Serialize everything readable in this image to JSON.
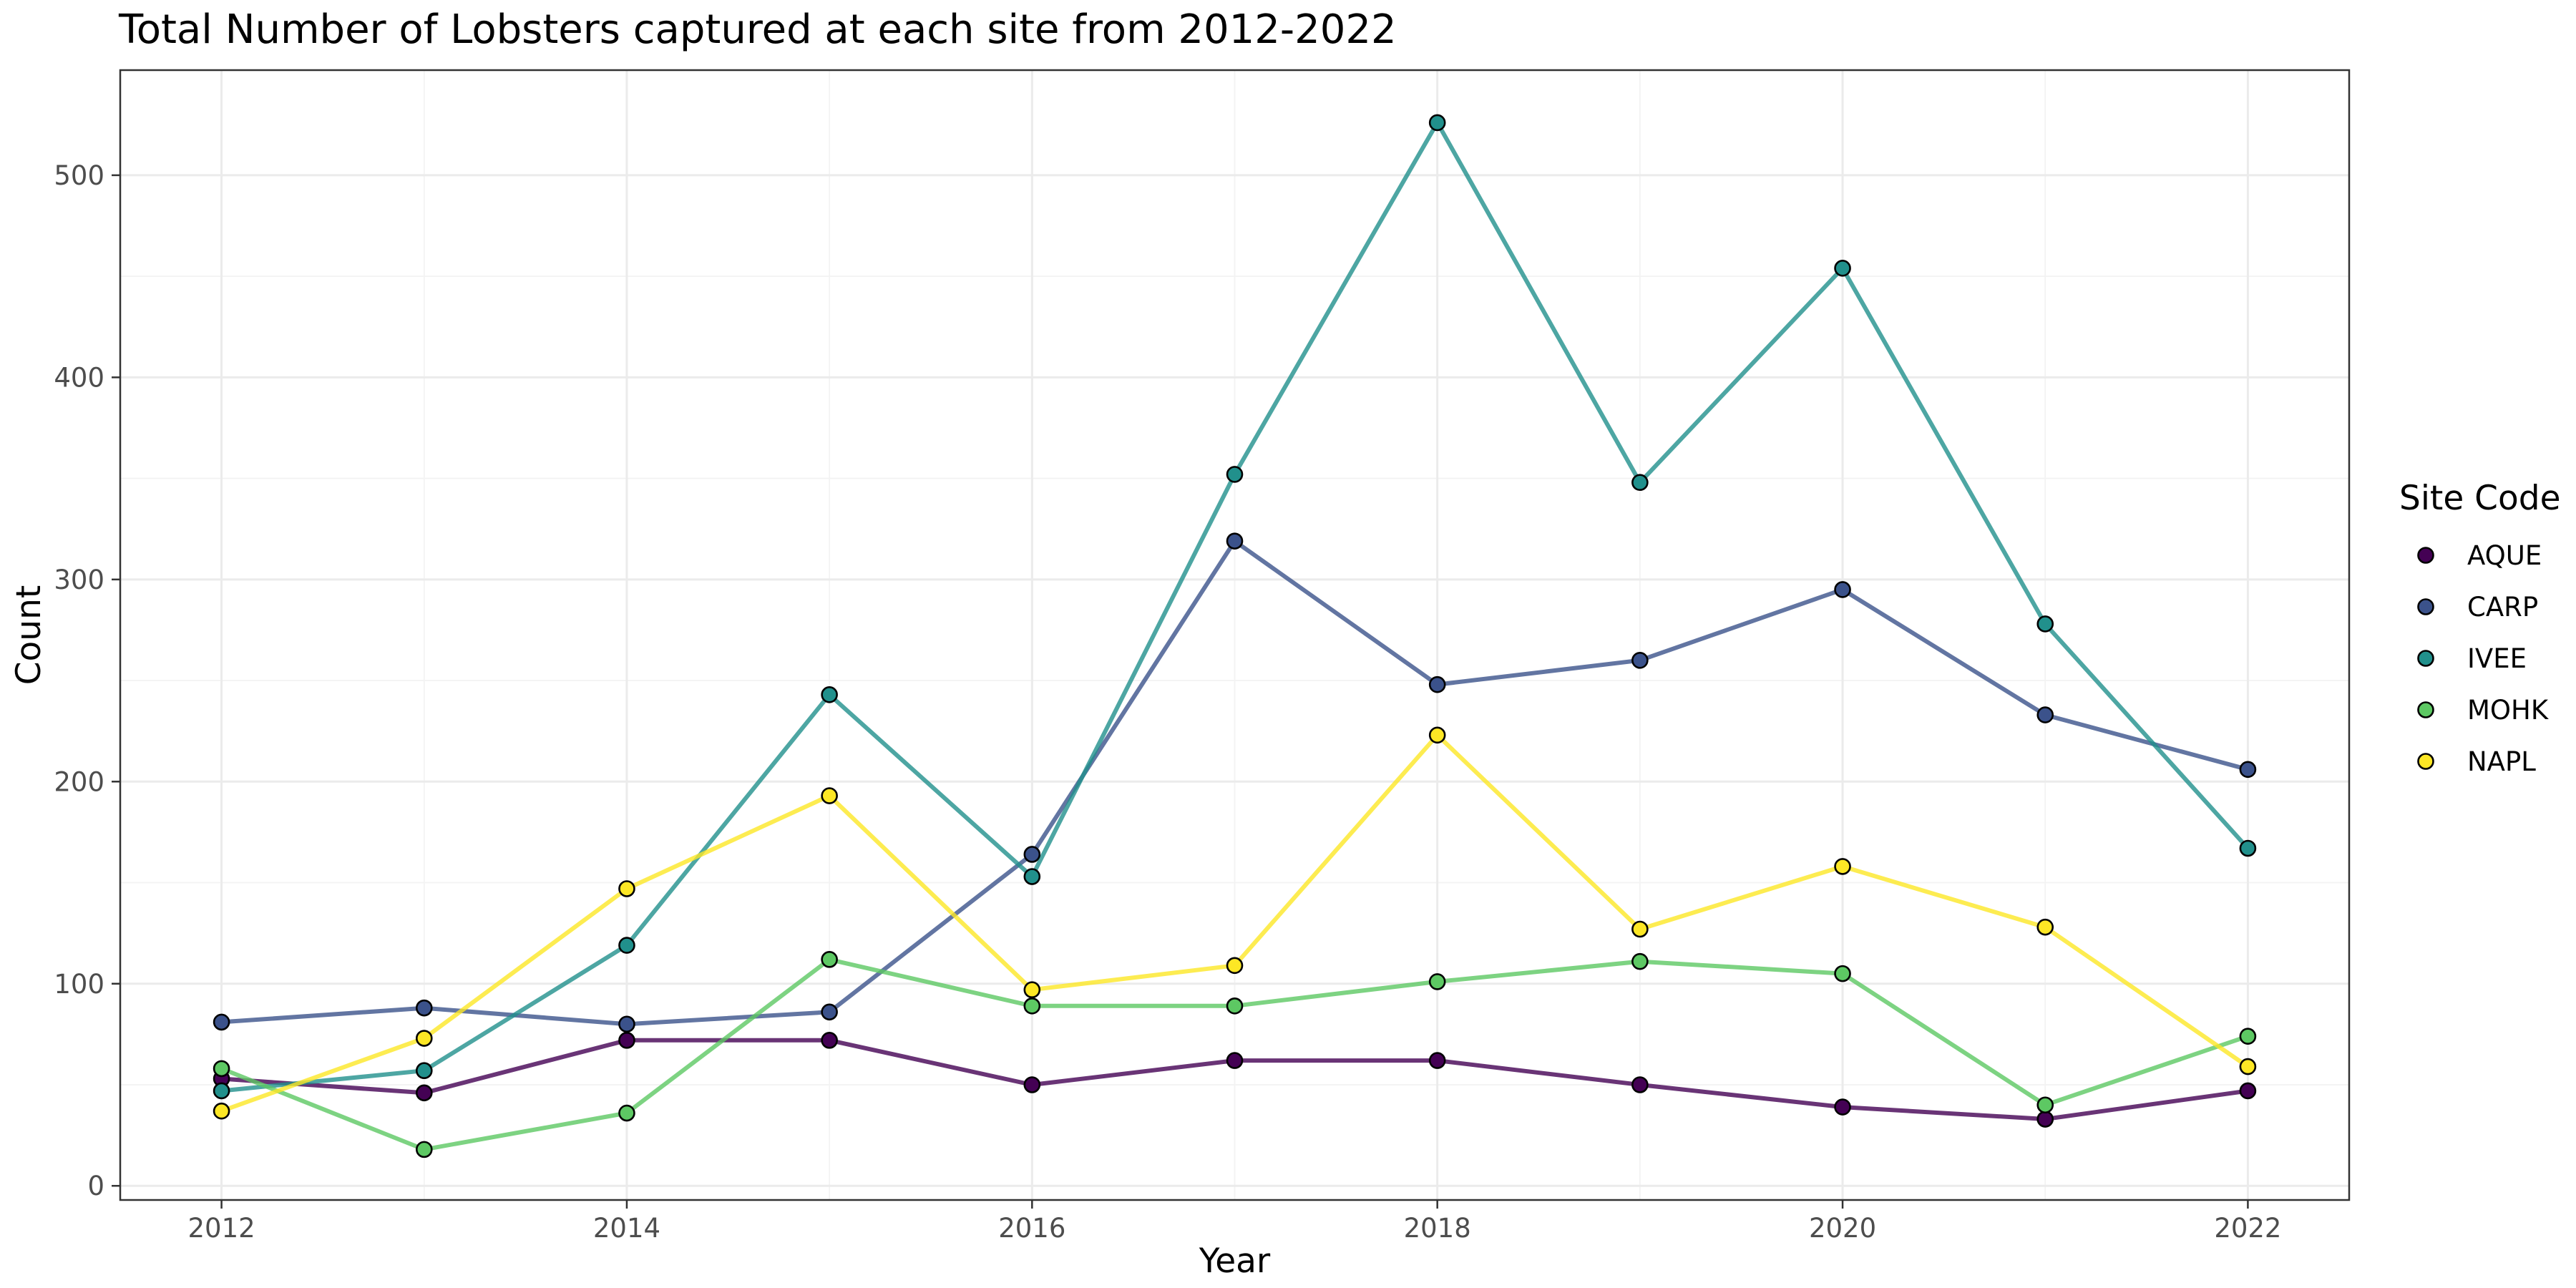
{
  "chart_data": {
    "type": "line",
    "title": "Total Number of Lobsters captured at each site from 2012-2022",
    "xlabel": "Year",
    "ylabel": "Count",
    "x": [
      2012,
      2013,
      2014,
      2015,
      2016,
      2017,
      2018,
      2019,
      2020,
      2021,
      2022
    ],
    "xlim": [
      2011.5,
      2022.5
    ],
    "ylim": [
      -7,
      552
    ],
    "x_ticks": [
      2012,
      2014,
      2016,
      2018,
      2020,
      2022
    ],
    "y_ticks": [
      0,
      100,
      200,
      300,
      400,
      500
    ],
    "grid": true,
    "legend": {
      "title": "Site Code",
      "placement": "right"
    },
    "series": [
      {
        "name": "AQUE",
        "color": "#440154",
        "values": [
          53,
          46,
          72,
          72,
          50,
          62,
          62,
          50,
          39,
          33,
          47
        ]
      },
      {
        "name": "CARP",
        "color": "#3B528B",
        "values": [
          81,
          88,
          80,
          86,
          164,
          319,
          248,
          260,
          295,
          233,
          206
        ]
      },
      {
        "name": "IVEE",
        "color": "#21908C",
        "values": [
          47,
          57,
          119,
          243,
          153,
          352,
          526,
          348,
          454,
          278,
          167
        ]
      },
      {
        "name": "MOHK",
        "color": "#5DC863",
        "values": [
          58,
          18,
          36,
          112,
          89,
          89,
          101,
          111,
          105,
          40,
          74
        ]
      },
      {
        "name": "NAPL",
        "color": "#FDE725",
        "values": [
          37,
          73,
          147,
          193,
          97,
          109,
          223,
          127,
          158,
          128,
          59
        ]
      }
    ]
  }
}
